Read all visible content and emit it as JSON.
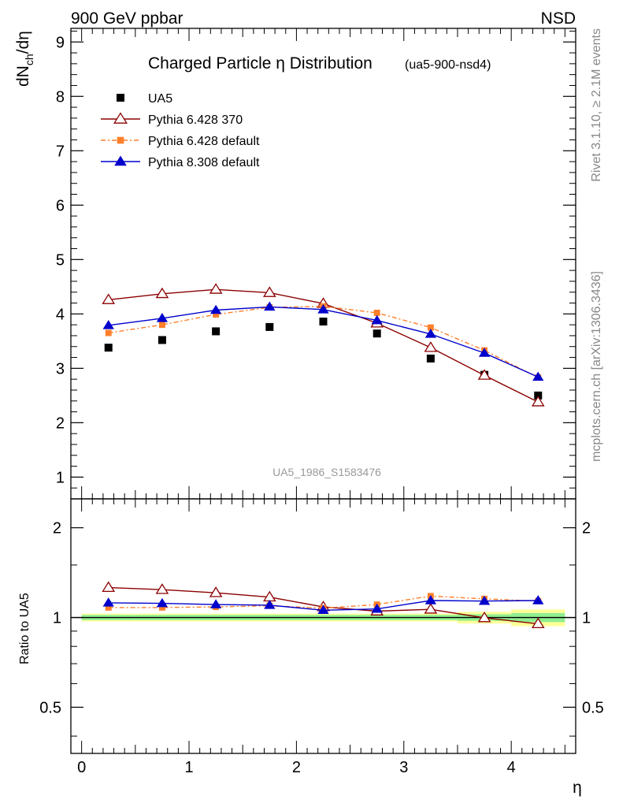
{
  "header": {
    "left": "900 GeV ppbar",
    "right": "NSD"
  },
  "side_labels": {
    "rivet": "Rivet 3.1.10, ≥ 2.1M events",
    "mcplots": "mcplots.cern.ch [arXiv:1306.3436]"
  },
  "chart_data": [
    {
      "type": "line",
      "title": "Charged Particle η Distribution",
      "subtitle": "(ua5-900-nsd4)",
      "ylabel_main": "dN",
      "ylabel_sub": "ch",
      "ylabel_tail": "/dη",
      "watermark": "UA5_1986_S1583476",
      "xlim": [
        -0.1,
        4.6
      ],
      "ylim": [
        0.6,
        9.25
      ],
      "y_ticks": [
        1,
        2,
        3,
        4,
        5,
        6,
        7,
        8,
        9
      ],
      "y_tick_labels": [
        "1",
        "2",
        "3",
        "4",
        "5",
        "6",
        "7",
        "8",
        "9"
      ],
      "grid": false,
      "legend_position": "top-left",
      "x": [
        0.25,
        0.75,
        1.25,
        1.75,
        2.25,
        2.75,
        3.25,
        3.75,
        4.25
      ],
      "series": [
        {
          "name": "UA5",
          "color": "#000000",
          "marker": "square",
          "values": [
            3.38,
            3.52,
            3.68,
            3.76,
            3.86,
            3.64,
            3.18,
            2.88,
            2.5
          ]
        },
        {
          "name": "Pythia 6.428 370",
          "color": "#8b0000",
          "marker": "open-triangle",
          "values": [
            4.26,
            4.37,
            4.45,
            4.39,
            4.19,
            3.83,
            3.38,
            2.87,
            2.38
          ]
        },
        {
          "name": "Pythia 6.428 default",
          "color": "#ff7f2a",
          "marker": "small-square",
          "dash": true,
          "values": [
            3.65,
            3.8,
            3.99,
            4.12,
            4.14,
            4.02,
            3.75,
            3.33,
            2.83
          ]
        },
        {
          "name": "Pythia 8.308 default",
          "color": "#0000cc",
          "marker": "triangle",
          "values": [
            3.79,
            3.92,
            4.07,
            4.13,
            4.08,
            3.88,
            3.63,
            3.28,
            2.84
          ]
        }
      ]
    },
    {
      "type": "line",
      "ylabel": "Ratio to UA5",
      "xlabel": "η",
      "xlim": [
        -0.1,
        4.6
      ],
      "ylim": [
        0.35,
        2.5
      ],
      "log_scale_y": true,
      "x_ticks": [
        0,
        1,
        2,
        3,
        4
      ],
      "x_tick_labels": [
        "0",
        "1",
        "2",
        "3",
        "4"
      ],
      "y_ticks": [
        0.5,
        1,
        2
      ],
      "y_tick_labels": [
        "0.5",
        "1",
        "2"
      ],
      "x": [
        0.25,
        0.75,
        1.25,
        1.75,
        2.25,
        2.75,
        3.25,
        3.75,
        4.25
      ],
      "uncertainty_band": {
        "x_edges": [
          0,
          0.5,
          1.0,
          1.5,
          2.0,
          2.5,
          3.0,
          3.5,
          4.0,
          4.5
        ],
        "inner": [
          0.02,
          0.02,
          0.02,
          0.02,
          0.02,
          0.02,
          0.02,
          0.025,
          0.035
        ],
        "outer": [
          0.03,
          0.03,
          0.03,
          0.03,
          0.03,
          0.03,
          0.03,
          0.045,
          0.065
        ],
        "inner_color": "#90ee90",
        "outer_color": "#ffff99"
      },
      "series": [
        {
          "name": "Pythia 6.428 370",
          "color": "#8b0000",
          "marker": "open-triangle",
          "values": [
            1.26,
            1.24,
            1.21,
            1.17,
            1.085,
            1.05,
            1.065,
            0.997,
            0.952
          ]
        },
        {
          "name": "Pythia 6.428 default",
          "color": "#ff7f2a",
          "marker": "small-square",
          "dash": true,
          "values": [
            1.08,
            1.08,
            1.085,
            1.095,
            1.075,
            1.105,
            1.18,
            1.155,
            1.135
          ]
        },
        {
          "name": "Pythia 8.308 default",
          "color": "#0000cc",
          "marker": "triangle",
          "values": [
            1.12,
            1.115,
            1.105,
            1.1,
            1.058,
            1.068,
            1.14,
            1.135,
            1.14
          ]
        }
      ]
    }
  ]
}
